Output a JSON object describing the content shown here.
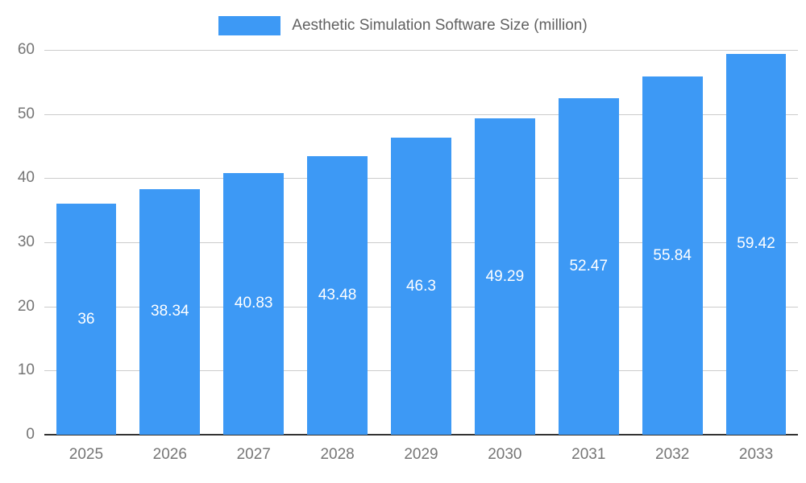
{
  "legend": {
    "label": "Aesthetic Simulation Software Size (million)"
  },
  "chart_data": {
    "type": "bar",
    "title": "Aesthetic Simulation Software Size (million)",
    "categories": [
      "2025",
      "2026",
      "2027",
      "2028",
      "2029",
      "2030",
      "2031",
      "2032",
      "2033"
    ],
    "values": [
      36,
      38.34,
      40.83,
      43.48,
      46.3,
      49.29,
      52.47,
      55.84,
      59.42
    ],
    "xlabel": "",
    "ylabel": "",
    "ylim": [
      0,
      60
    ],
    "ytick_step": 10,
    "yticks": [
      0,
      10,
      20,
      30,
      40,
      50,
      60
    ],
    "grid": true,
    "legend_position": "top",
    "colors": {
      "bar": "#3D99F5",
      "value_label": "#ffffff",
      "axis_text": "#757575",
      "legend_text": "#616161",
      "gridline": "#cccccc",
      "baseline": "#333333",
      "background": "#ffffff"
    }
  }
}
